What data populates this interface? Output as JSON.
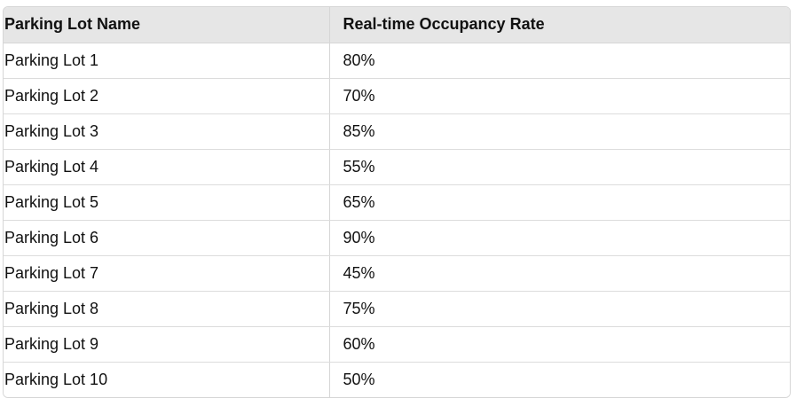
{
  "table": {
    "headers": [
      "Parking Lot Name",
      "Real-time Occupancy Rate"
    ],
    "rows": [
      [
        "Parking Lot 1",
        "80%"
      ],
      [
        "Parking Lot 2",
        "70%"
      ],
      [
        "Parking Lot 3",
        "85%"
      ],
      [
        "Parking Lot 4",
        "55%"
      ],
      [
        "Parking Lot 5",
        "65%"
      ],
      [
        "Parking Lot 6",
        "90%"
      ],
      [
        "Parking Lot 7",
        "45%"
      ],
      [
        "Parking Lot 8",
        "75%"
      ],
      [
        "Parking Lot 9",
        "60%"
      ],
      [
        "Parking Lot 10",
        "50%"
      ]
    ]
  }
}
